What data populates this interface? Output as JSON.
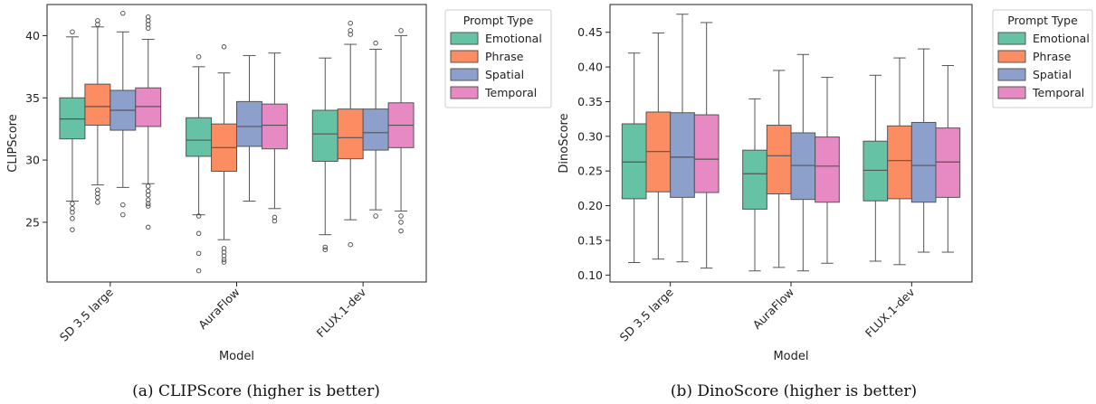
{
  "colors": {
    "Emotional": "#66c2a5",
    "Phrase": "#fc8d62",
    "Spatial": "#8da0cb",
    "Temporal": "#e78ac3"
  },
  "captions": {
    "a": "(a) CLIPScore (higher is better)",
    "b": "(b) DinoScore (higher is better)"
  },
  "chart_data": [
    {
      "type": "box",
      "xlabel": "Model",
      "ylabel": "CLIPScore",
      "ylim": [
        20.2,
        42.5
      ],
      "yticks": [
        25,
        30,
        35,
        40
      ],
      "ytick_labels": [
        "25",
        "30",
        "35",
        "40"
      ],
      "categories": [
        "SD 3.5 large",
        "AuraFlow",
        "FLUX.1-dev"
      ],
      "legend_title": "Prompt Type",
      "legend_placement": "outside-upper-right",
      "series": [
        {
          "name": "Emotional",
          "boxes": [
            {
              "whislo": 26.7,
              "q1": 31.7,
              "med": 33.3,
              "q3": 35.0,
              "whishi": 39.9,
              "fliers": [
                40.3,
                26.5,
                26.1,
                25.8,
                25.3,
                24.4
              ]
            },
            {
              "whislo": 25.6,
              "q1": 30.3,
              "med": 31.6,
              "q3": 33.4,
              "whishi": 37.5,
              "fliers": [
                38.3,
                25.5,
                24.1,
                22.5,
                21.1
              ]
            },
            {
              "whislo": 24.0,
              "q1": 29.9,
              "med": 32.1,
              "q3": 34.0,
              "whishi": 38.2,
              "fliers": [
                23.0,
                22.8
              ]
            }
          ]
        },
        {
          "name": "Phrase",
          "boxes": [
            {
              "whislo": 28.0,
              "q1": 32.8,
              "med": 34.3,
              "q3": 36.1,
              "whishi": 40.7,
              "fliers": [
                41.2,
                40.9,
                27.6,
                27.3,
                27.0,
                26.6
              ]
            },
            {
              "whislo": 23.6,
              "q1": 29.1,
              "med": 31.0,
              "q3": 32.9,
              "whishi": 37.0,
              "fliers": [
                39.1,
                22.9,
                22.6,
                22.3,
                22.0,
                21.8
              ]
            },
            {
              "whislo": 25.2,
              "q1": 30.1,
              "med": 31.8,
              "q3": 34.1,
              "whishi": 39.3,
              "fliers": [
                41.0,
                40.4,
                40.1,
                23.2
              ]
            }
          ]
        },
        {
          "name": "Spatial",
          "boxes": [
            {
              "whislo": 27.8,
              "q1": 32.4,
              "med": 34.0,
              "q3": 35.6,
              "whishi": 40.3,
              "fliers": [
                41.8,
                26.4,
                25.6
              ]
            },
            {
              "whislo": 26.7,
              "q1": 31.1,
              "med": 32.7,
              "q3": 34.7,
              "whishi": 38.4,
              "fliers": []
            },
            {
              "whislo": 26.0,
              "q1": 30.8,
              "med": 32.2,
              "q3": 34.1,
              "whishi": 38.9,
              "fliers": [
                39.4,
                25.5
              ]
            }
          ]
        },
        {
          "name": "Temporal",
          "boxes": [
            {
              "whislo": 28.1,
              "q1": 32.7,
              "med": 34.3,
              "q3": 35.8,
              "whishi": 39.7,
              "fliers": [
                41.5,
                41.2,
                40.9,
                40.6,
                27.9,
                27.5,
                27.2,
                26.8,
                26.5,
                26.3,
                24.6
              ]
            },
            {
              "whislo": 26.1,
              "q1": 30.9,
              "med": 32.8,
              "q3": 34.5,
              "whishi": 38.6,
              "fliers": [
                25.4,
                25.1
              ]
            },
            {
              "whislo": 25.9,
              "q1": 31.0,
              "med": 32.8,
              "q3": 34.6,
              "whishi": 40.0,
              "fliers": [
                40.4,
                25.5,
                25.0,
                24.3
              ]
            }
          ]
        }
      ]
    },
    {
      "type": "box",
      "xlabel": "Model",
      "ylabel": "DinoScore",
      "ylim": [
        0.09,
        0.49
      ],
      "yticks": [
        0.1,
        0.15,
        0.2,
        0.25,
        0.3,
        0.35,
        0.4,
        0.45
      ],
      "ytick_labels": [
        "0.10",
        "0.15",
        "0.20",
        "0.25",
        "0.30",
        "0.35",
        "0.40",
        "0.45"
      ],
      "categories": [
        "SD 3.5 large",
        "AuraFlow",
        "FLUX.1-dev"
      ],
      "legend_title": "Prompt Type",
      "legend_placement": "outside-upper-right",
      "series": [
        {
          "name": "Emotional",
          "boxes": [
            {
              "whislo": 0.118,
              "q1": 0.21,
              "med": 0.263,
              "q3": 0.318,
              "whishi": 0.42,
              "fliers": []
            },
            {
              "whislo": 0.106,
              "q1": 0.195,
              "med": 0.246,
              "q3": 0.28,
              "whishi": 0.354,
              "fliers": []
            },
            {
              "whislo": 0.12,
              "q1": 0.207,
              "med": 0.251,
              "q3": 0.293,
              "whishi": 0.388,
              "fliers": []
            }
          ]
        },
        {
          "name": "Phrase",
          "boxes": [
            {
              "whislo": 0.123,
              "q1": 0.22,
              "med": 0.278,
              "q3": 0.335,
              "whishi": 0.449,
              "fliers": []
            },
            {
              "whislo": 0.111,
              "q1": 0.217,
              "med": 0.272,
              "q3": 0.316,
              "whishi": 0.395,
              "fliers": []
            },
            {
              "whislo": 0.115,
              "q1": 0.21,
              "med": 0.265,
              "q3": 0.315,
              "whishi": 0.413,
              "fliers": []
            }
          ]
        },
        {
          "name": "Spatial",
          "boxes": [
            {
              "whislo": 0.119,
              "q1": 0.212,
              "med": 0.27,
              "q3": 0.334,
              "whishi": 0.476,
              "fliers": []
            },
            {
              "whislo": 0.106,
              "q1": 0.209,
              "med": 0.258,
              "q3": 0.305,
              "whishi": 0.418,
              "fliers": []
            },
            {
              "whislo": 0.133,
              "q1": 0.205,
              "med": 0.258,
              "q3": 0.32,
              "whishi": 0.426,
              "fliers": []
            }
          ]
        },
        {
          "name": "Temporal",
          "boxes": [
            {
              "whislo": 0.11,
              "q1": 0.219,
              "med": 0.267,
              "q3": 0.331,
              "whishi": 0.464,
              "fliers": []
            },
            {
              "whislo": 0.117,
              "q1": 0.205,
              "med": 0.257,
              "q3": 0.299,
              "whishi": 0.385,
              "fliers": []
            },
            {
              "whislo": 0.133,
              "q1": 0.212,
              "med": 0.263,
              "q3": 0.312,
              "whishi": 0.402,
              "fliers": []
            }
          ]
        }
      ]
    }
  ]
}
